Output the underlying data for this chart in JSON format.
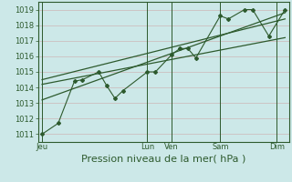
{
  "xlabel": "Pression niveau de la mer( hPa )",
  "ylim": [
    1010.5,
    1019.5
  ],
  "yticks": [
    1011,
    1012,
    1013,
    1014,
    1015,
    1016,
    1017,
    1018,
    1019
  ],
  "background_color": "#cce8e8",
  "grid_color": "#aacccc",
  "line_color": "#2d5a2d",
  "x_tick_labels": [
    "Jeu",
    "Lun",
    "Ven",
    "Sam",
    "Dim"
  ],
  "x_tick_positions": [
    0,
    13,
    16,
    22,
    29
  ],
  "xlim": [
    -0.5,
    30.5
  ],
  "series1_x": [
    0,
    2,
    4,
    5,
    7,
    8,
    9,
    10,
    13,
    14,
    16,
    17,
    18,
    19,
    22,
    23,
    25,
    26,
    28,
    30
  ],
  "series1_y": [
    1011.0,
    1011.7,
    1014.4,
    1014.5,
    1015.0,
    1014.1,
    1013.3,
    1013.8,
    1015.0,
    1015.0,
    1016.1,
    1016.5,
    1016.5,
    1015.9,
    1018.6,
    1018.4,
    1019.0,
    1019.0,
    1017.3,
    1019.0
  ],
  "series2_x": [
    0,
    30
  ],
  "series2_y": [
    1014.5,
    1018.4
  ],
  "series3_x": [
    0,
    30
  ],
  "series3_y": [
    1014.2,
    1017.2
  ],
  "series4_x": [
    0,
    30
  ],
  "series4_y": [
    1013.2,
    1018.8
  ],
  "vline_positions": [
    0,
    13,
    16,
    22,
    29
  ],
  "xlabel_fontsize": 8,
  "ytick_fontsize": 6,
  "xtick_fontsize": 6
}
